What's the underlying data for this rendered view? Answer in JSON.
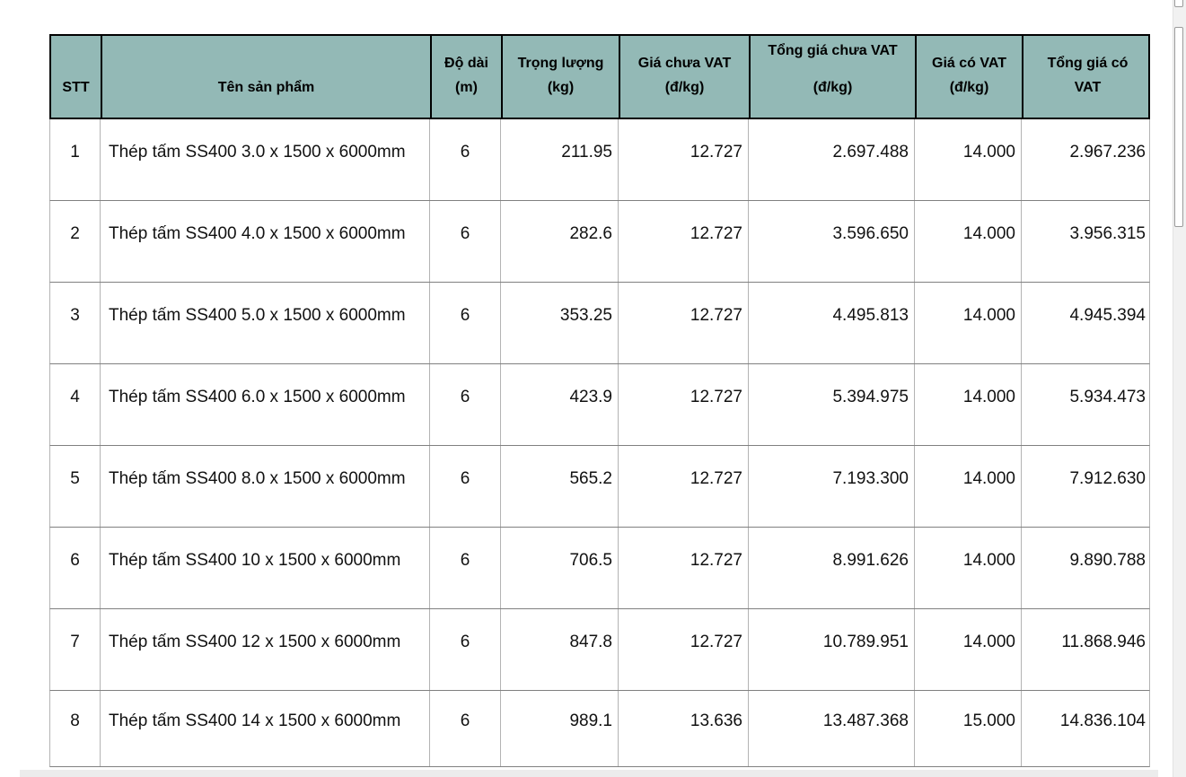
{
  "table": {
    "columns": [
      {
        "id": "stt",
        "lines": [
          "STT"
        ],
        "align": "center",
        "gap": false
      },
      {
        "id": "ten-san-pham",
        "lines": [
          "Tên sản phẩm"
        ],
        "align": "left",
        "gap": false
      },
      {
        "id": "do-dai",
        "lines": [
          "Độ dài",
          "(m)"
        ],
        "align": "center",
        "gap": false
      },
      {
        "id": "trong-luong",
        "lines": [
          "Trọng lượng",
          "(kg)"
        ],
        "align": "right",
        "gap": false
      },
      {
        "id": "gia-chua-vat",
        "lines": [
          "Giá chưa VAT",
          "(đ/kg)"
        ],
        "align": "right",
        "gap": false
      },
      {
        "id": "tong-gia-chua-vat",
        "lines": [
          "Tổng giá chưa VAT",
          "(đ/kg)"
        ],
        "align": "right",
        "gap": true
      },
      {
        "id": "gia-co-vat",
        "lines": [
          "Giá có VAT",
          "(đ/kg)"
        ],
        "align": "right",
        "gap": false
      },
      {
        "id": "tong-gia-co-vat",
        "lines": [
          "Tổng giá có",
          "VAT"
        ],
        "align": "right",
        "gap": false
      }
    ],
    "rows": [
      [
        "1",
        "Thép tấm SS400 3.0 x 1500 x 6000mm",
        "6",
        "211.95",
        "12.727",
        "2.697.488",
        "14.000",
        "2.967.236"
      ],
      [
        "2",
        "Thép tấm SS400 4.0 x 1500 x 6000mm",
        "6",
        "282.6",
        "12.727",
        "3.596.650",
        "14.000",
        "3.956.315"
      ],
      [
        "3",
        "Thép tấm SS400 5.0 x 1500 x 6000mm",
        "6",
        "353.25",
        "12.727",
        "4.495.813",
        "14.000",
        "4.945.394"
      ],
      [
        "4",
        "Thép tấm SS400 6.0 x 1500 x 6000mm",
        "6",
        "423.9",
        "12.727",
        "5.394.975",
        "14.000",
        "5.934.473"
      ],
      [
        "5",
        "Thép tấm SS400 8.0 x 1500 x 6000mm",
        "6",
        "565.2",
        "12.727",
        "7.193.300",
        "14.000",
        "7.912.630"
      ],
      [
        "6",
        "Thép tấm SS400 10 x 1500 x 6000mm",
        "6",
        "706.5",
        "12.727",
        "8.991.626",
        "14.000",
        "9.890.788"
      ],
      [
        "7",
        "Thép tấm SS400 12 x 1500 x 6000mm",
        "6",
        "847.8",
        "12.727",
        "10.789.951",
        "14.000",
        "11.868.946"
      ],
      [
        "8",
        "Thép tấm SS400 14 x 1500 x 6000mm",
        "6",
        "989.1",
        "13.636",
        "13.487.368",
        "15.000",
        "14.836.104"
      ]
    ]
  },
  "colors": {
    "header_bg": "#93b9b6",
    "header_border": "#000000",
    "body_border_vertical": "#b3b3b3",
    "body_border_horizontal": "#808080",
    "scrollbar_track": "#f1f1f1",
    "scrollbar_thumb_border": "#9b9b9b"
  }
}
